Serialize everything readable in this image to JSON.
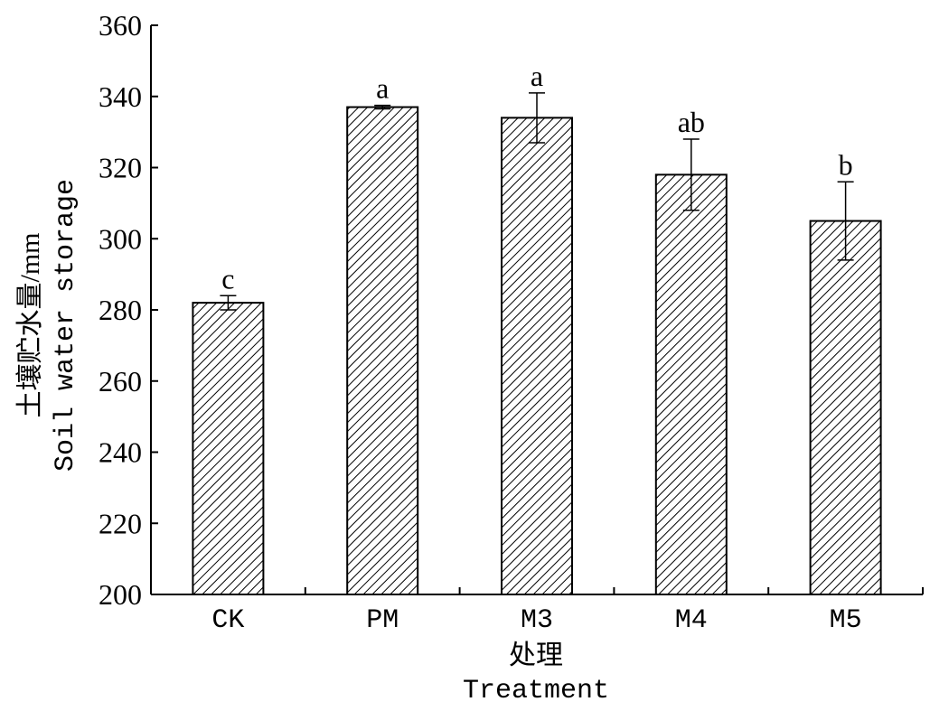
{
  "chart_data": {
    "type": "bar",
    "categories": [
      "CK",
      "PM",
      "M3",
      "M4",
      "M5"
    ],
    "values": [
      282,
      337,
      334,
      318,
      305
    ],
    "error": [
      2,
      0.5,
      7,
      10,
      11
    ],
    "significance_labels": [
      "c",
      "a",
      "a",
      "ab",
      "b"
    ],
    "ylabel_line1": "土壤贮水量/mm",
    "ylabel_line2": "Soil water storage",
    "xlabel_line1": "处理",
    "xlabel_line2": "Treatment",
    "ylim": [
      200,
      360
    ],
    "yticks": [
      200,
      220,
      240,
      260,
      280,
      300,
      320,
      340,
      360
    ],
    "bar_fill": "hatched",
    "grid": false
  }
}
